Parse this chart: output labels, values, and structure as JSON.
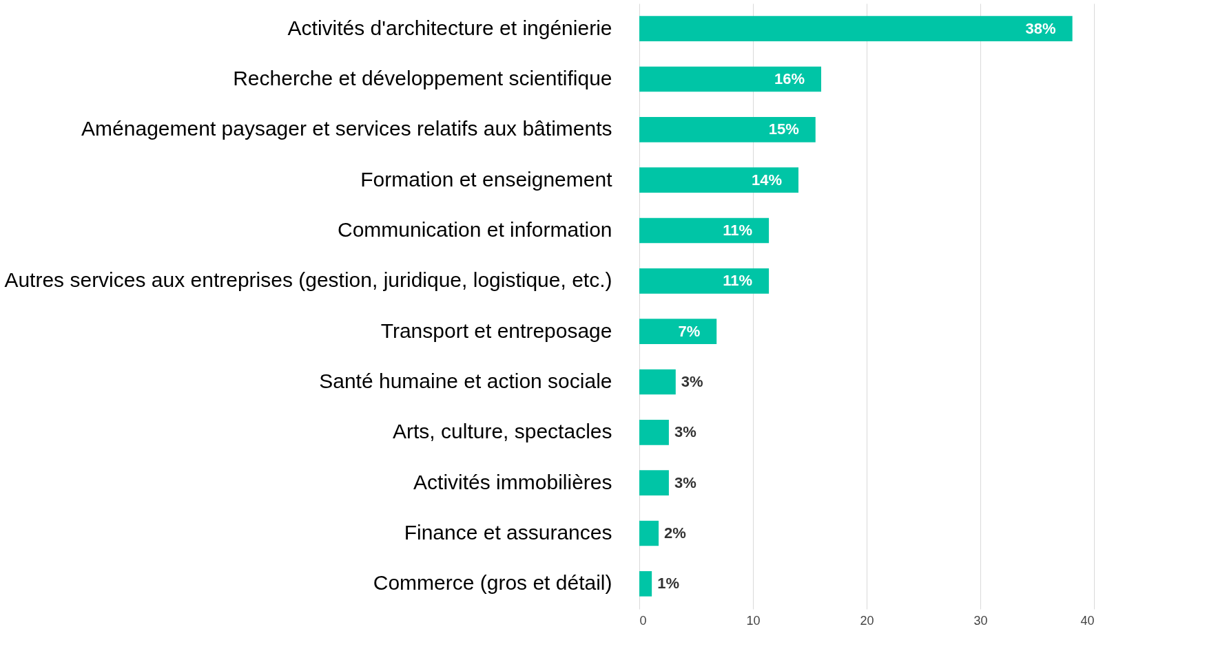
{
  "chart_data": {
    "type": "bar",
    "orientation": "horizontal",
    "categories": [
      "Activités d'architecture et ingénierie",
      "Recherche et développement scientifique",
      "Aménagement paysager et services relatifs aux bâtiments",
      "Formation et enseignement",
      "Communication et information",
      "Autres services aux entreprises (gestion, juridique, logistique, etc.)",
      "Transport et entreposage",
      "Santé humaine et action sociale",
      "Arts, culture, spectacles",
      "Activités immobilières",
      "Finance et assurances",
      "Commerce (gros et détail)"
    ],
    "values": [
      38.1,
      16.0,
      15.5,
      14.0,
      11.4,
      11.4,
      6.8,
      3.2,
      2.6,
      2.6,
      1.7,
      1.1
    ],
    "value_labels": [
      "38%",
      "16%",
      "15%",
      "14%",
      "11%",
      "11%",
      "7%",
      "3%",
      "3%",
      "3%",
      "2%",
      "1%"
    ],
    "color": "#00c5a6",
    "xlim": [
      0,
      40
    ],
    "xticks": [
      0,
      10,
      20,
      30,
      40
    ],
    "grid": "x"
  }
}
